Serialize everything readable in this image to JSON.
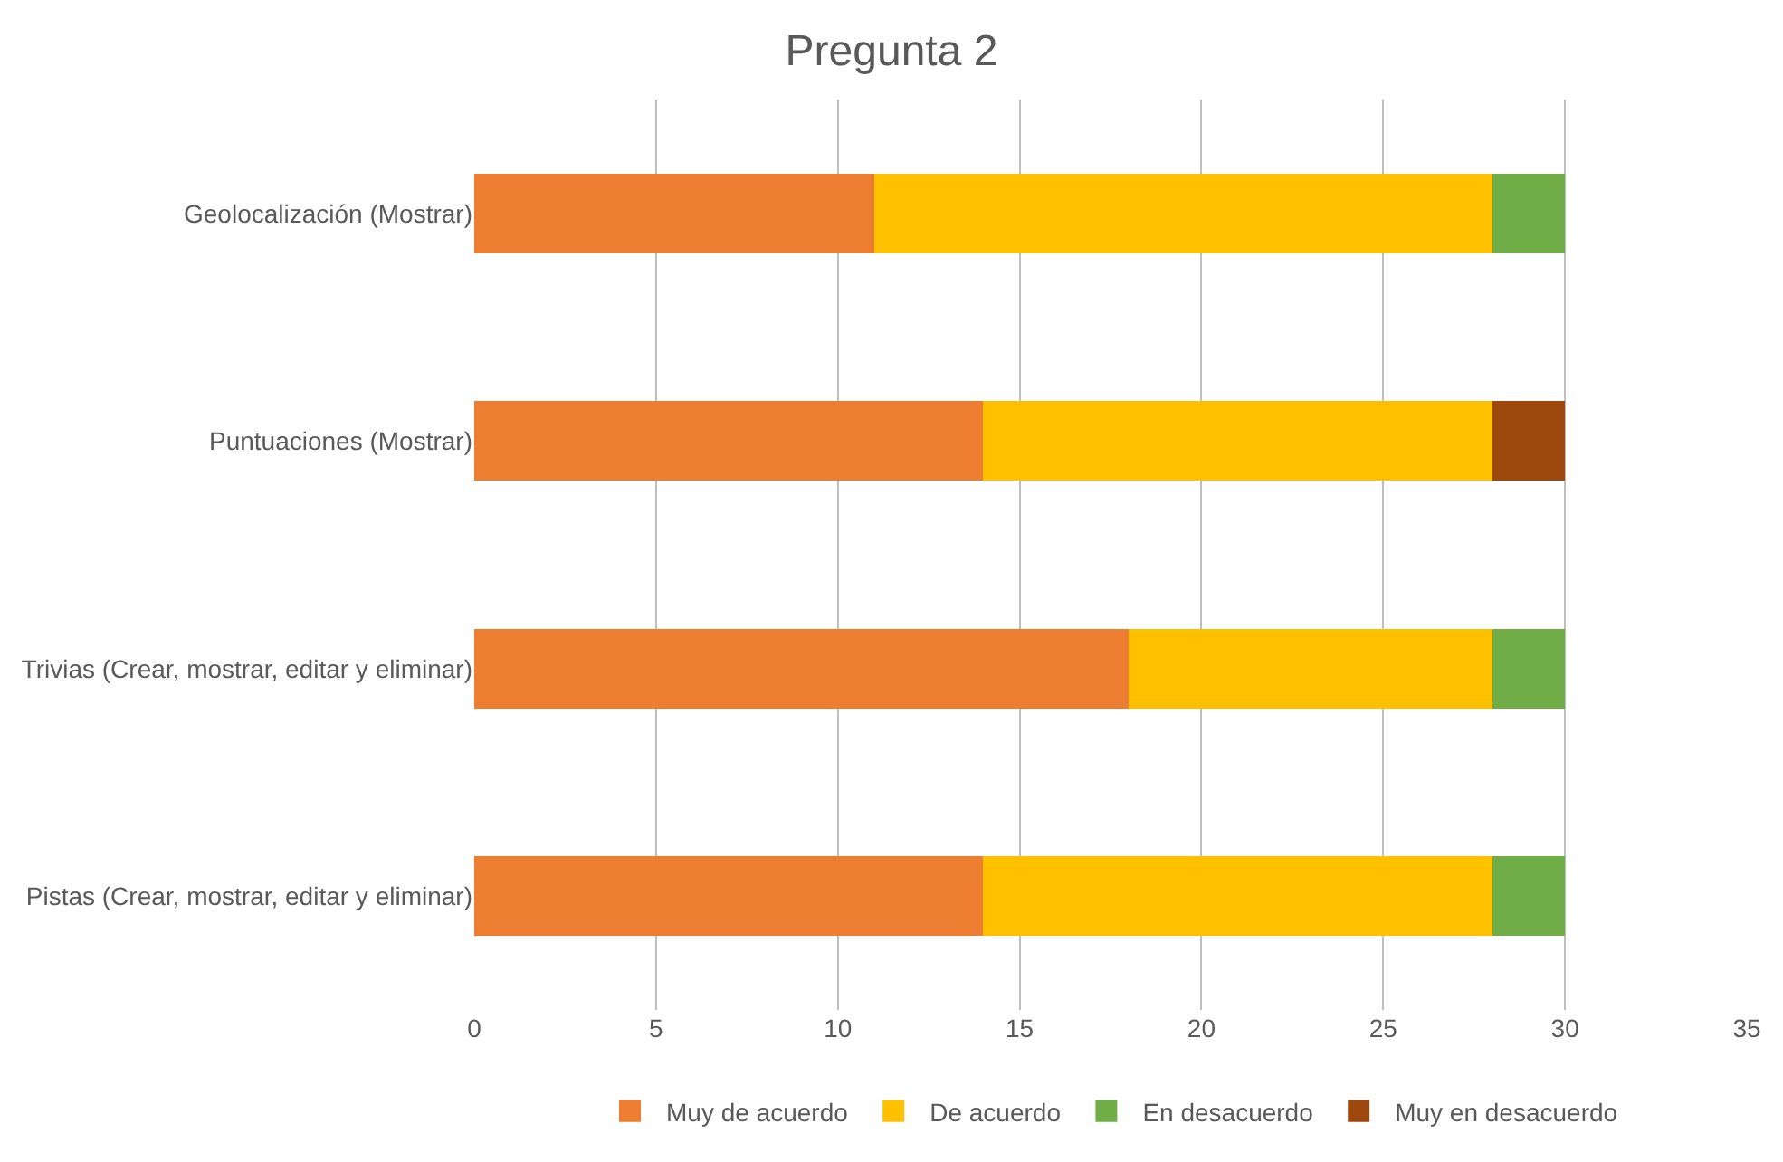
{
  "chart_data": {
    "type": "bar",
    "orientation": "horizontal",
    "stacked": true,
    "title": "Pregunta 2",
    "categories": [
      "Geolocalización (Mostrar)",
      "Puntuaciones (Mostrar)",
      "Trivias (Crear, mostrar, editar y eliminar)",
      "Pistas (Crear, mostrar, editar y eliminar)"
    ],
    "series": [
      {
        "name": "Muy de acuerdo",
        "color": "#ed7d31",
        "values": [
          11,
          14,
          18,
          14
        ]
      },
      {
        "name": "De acuerdo",
        "color": "#ffc000",
        "values": [
          17,
          14,
          10,
          14
        ]
      },
      {
        "name": "En desacuerdo",
        "color": "#70ad47",
        "values": [
          2,
          null,
          2,
          2
        ]
      },
      {
        "name": "Muy en desacuerdo",
        "color": "#9e480e",
        "values": [
          null,
          2,
          null,
          null
        ]
      }
    ],
    "xlim": [
      0,
      35
    ],
    "xticks": [
      0,
      5,
      10,
      15,
      20,
      25,
      30,
      35
    ],
    "grid": "x",
    "legend": "bottom"
  }
}
